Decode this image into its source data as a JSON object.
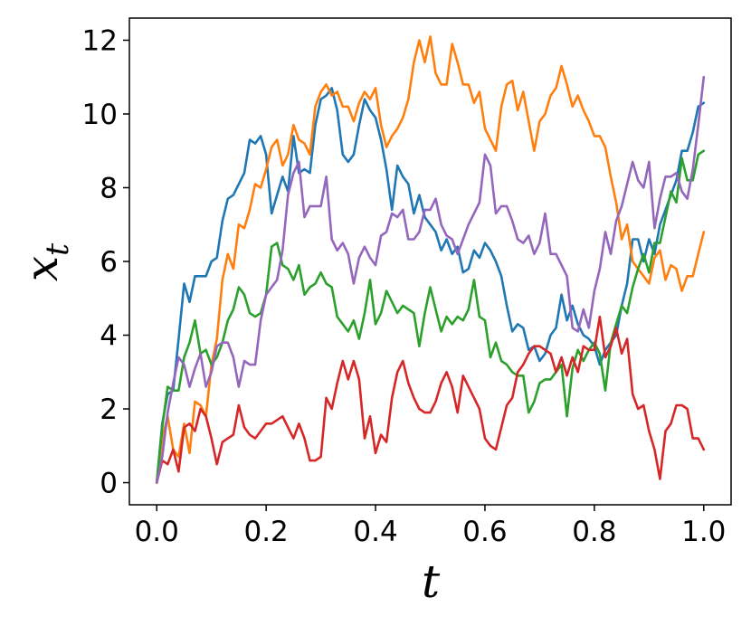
{
  "chart_data": {
    "type": "line",
    "xlabel": "t",
    "ylabel_main": "x",
    "ylabel_sub": "t",
    "xlim": [
      -0.05,
      1.05
    ],
    "ylim": [
      -0.6,
      12.6
    ],
    "xticks": [
      0.0,
      0.2,
      0.4,
      0.6,
      0.8,
      1.0
    ],
    "xtick_labels": [
      "0.0",
      "0.2",
      "0.4",
      "0.6",
      "0.8",
      "1.0"
    ],
    "yticks": [
      0,
      2,
      4,
      6,
      8,
      10,
      12
    ],
    "ytick_labels": [
      "0",
      "2",
      "4",
      "6",
      "8",
      "10",
      "12"
    ],
    "grid": false,
    "legend": "none",
    "series": [
      {
        "color": "#1f77b4",
        "x": [
          0.0,
          0.01,
          0.02,
          0.03,
          0.04,
          0.05,
          0.06,
          0.07,
          0.08,
          0.09,
          0.1,
          0.11,
          0.12,
          0.13,
          0.14,
          0.15,
          0.16,
          0.17,
          0.18,
          0.19,
          0.2,
          0.21,
          0.22,
          0.23,
          0.24,
          0.25,
          0.26,
          0.27,
          0.28,
          0.29,
          0.3,
          0.31,
          0.32,
          0.33,
          0.34,
          0.35,
          0.36,
          0.37,
          0.38,
          0.39,
          0.4,
          0.41,
          0.42,
          0.43,
          0.44,
          0.45,
          0.46,
          0.47,
          0.48,
          0.49,
          0.5,
          0.51,
          0.52,
          0.53,
          0.54,
          0.55,
          0.56,
          0.57,
          0.58,
          0.59,
          0.6,
          0.61,
          0.62,
          0.63,
          0.64,
          0.65,
          0.66,
          0.67,
          0.68,
          0.69,
          0.7,
          0.71,
          0.72,
          0.73,
          0.74,
          0.75,
          0.76,
          0.77,
          0.78,
          0.79,
          0.8,
          0.81,
          0.82,
          0.83,
          0.84,
          0.85,
          0.86,
          0.87,
          0.88,
          0.89,
          0.9,
          0.91,
          0.92,
          0.93,
          0.94,
          0.95,
          0.96,
          0.97,
          0.98,
          0.99,
          1.0
        ],
        "y": [
          0.0,
          1.6,
          2.4,
          2.5,
          3.9,
          5.4,
          4.9,
          5.6,
          5.6,
          5.6,
          6.0,
          6.1,
          7.1,
          7.7,
          7.8,
          8.1,
          8.4,
          9.3,
          9.2,
          9.4,
          8.9,
          7.3,
          7.8,
          8.3,
          7.9,
          9.4,
          8.4,
          8.5,
          8.4,
          9.7,
          10.4,
          10.5,
          10.7,
          10.1,
          8.9,
          8.7,
          8.9,
          9.7,
          10.4,
          10.1,
          9.9,
          9.3,
          8.5,
          7.4,
          8.6,
          8.3,
          8.1,
          7.3,
          7.8,
          7.2,
          7.0,
          6.8,
          6.3,
          6.6,
          6.2,
          6.4,
          5.7,
          5.8,
          6.3,
          6.1,
          6.5,
          6.3,
          6.0,
          5.6,
          4.8,
          4.1,
          4.3,
          4.2,
          3.6,
          3.7,
          3.3,
          3.5,
          4.0,
          4.2,
          5.1,
          4.4,
          4.8,
          4.3,
          4.0,
          3.9,
          3.7,
          3.2,
          3.6,
          3.8,
          4.0,
          4.8,
          5.4,
          6.6,
          6.6,
          6.0,
          6.6,
          6.2,
          7.0,
          7.4,
          7.8,
          8.2,
          9.0,
          9.0,
          9.5,
          10.2,
          10.3
        ]
      },
      {
        "color": "#ff7f0e",
        "x": [
          0.0,
          0.01,
          0.02,
          0.03,
          0.04,
          0.05,
          0.06,
          0.07,
          0.08,
          0.09,
          0.1,
          0.11,
          0.12,
          0.13,
          0.14,
          0.15,
          0.16,
          0.17,
          0.18,
          0.19,
          0.2,
          0.21,
          0.22,
          0.23,
          0.24,
          0.25,
          0.26,
          0.27,
          0.28,
          0.29,
          0.3,
          0.31,
          0.32,
          0.33,
          0.34,
          0.35,
          0.36,
          0.37,
          0.38,
          0.39,
          0.4,
          0.41,
          0.42,
          0.43,
          0.44,
          0.45,
          0.46,
          0.47,
          0.48,
          0.49,
          0.5,
          0.51,
          0.52,
          0.53,
          0.54,
          0.55,
          0.56,
          0.57,
          0.58,
          0.59,
          0.6,
          0.61,
          0.62,
          0.63,
          0.64,
          0.65,
          0.66,
          0.67,
          0.68,
          0.69,
          0.7,
          0.71,
          0.72,
          0.73,
          0.74,
          0.75,
          0.76,
          0.77,
          0.78,
          0.79,
          0.8,
          0.81,
          0.82,
          0.83,
          0.84,
          0.85,
          0.86,
          0.87,
          0.88,
          0.89,
          0.9,
          0.91,
          0.92,
          0.93,
          0.94,
          0.95,
          0.96,
          0.97,
          0.98,
          0.99,
          1.0
        ],
        "y": [
          0.0,
          1.2,
          1.8,
          0.9,
          0.7,
          1.6,
          0.8,
          2.2,
          2.1,
          1.8,
          3.2,
          3.9,
          5.5,
          6.2,
          5.8,
          7.0,
          6.9,
          7.4,
          8.1,
          8.0,
          8.5,
          9.1,
          9.3,
          8.6,
          8.9,
          9.7,
          9.3,
          9.2,
          8.9,
          10.2,
          10.6,
          10.8,
          10.5,
          10.6,
          10.2,
          10.2,
          9.8,
          10.3,
          10.6,
          10.4,
          10.7,
          9.7,
          9.1,
          9.4,
          9.6,
          9.9,
          10.4,
          11.4,
          12.0,
          11.4,
          12.1,
          11.1,
          10.8,
          10.8,
          11.9,
          11.4,
          10.8,
          10.8,
          10.3,
          10.6,
          9.6,
          9.3,
          9.0,
          10.2,
          10.8,
          10.9,
          10.1,
          10.6,
          9.8,
          9.0,
          9.8,
          10.0,
          10.5,
          10.7,
          11.3,
          10.8,
          10.2,
          10.5,
          10.1,
          9.8,
          9.4,
          9.4,
          9.1,
          8.3,
          7.6,
          6.6,
          7.0,
          6.0,
          5.8,
          5.6,
          5.4,
          6.1,
          6.3,
          5.5,
          5.9,
          5.8,
          5.2,
          5.6,
          5.6,
          6.2,
          6.8
        ]
      },
      {
        "color": "#2ca02c",
        "x": [
          0.0,
          0.01,
          0.02,
          0.03,
          0.04,
          0.05,
          0.06,
          0.07,
          0.08,
          0.09,
          0.1,
          0.11,
          0.12,
          0.13,
          0.14,
          0.15,
          0.16,
          0.17,
          0.18,
          0.19,
          0.2,
          0.21,
          0.22,
          0.23,
          0.24,
          0.25,
          0.26,
          0.27,
          0.28,
          0.29,
          0.3,
          0.31,
          0.32,
          0.33,
          0.34,
          0.35,
          0.36,
          0.37,
          0.38,
          0.39,
          0.4,
          0.41,
          0.42,
          0.43,
          0.44,
          0.45,
          0.46,
          0.47,
          0.48,
          0.49,
          0.5,
          0.51,
          0.52,
          0.53,
          0.54,
          0.55,
          0.56,
          0.57,
          0.58,
          0.59,
          0.6,
          0.61,
          0.62,
          0.63,
          0.64,
          0.65,
          0.66,
          0.67,
          0.68,
          0.69,
          0.7,
          0.71,
          0.72,
          0.73,
          0.74,
          0.75,
          0.76,
          0.77,
          0.78,
          0.79,
          0.8,
          0.81,
          0.82,
          0.83,
          0.84,
          0.85,
          0.86,
          0.87,
          0.88,
          0.89,
          0.9,
          0.91,
          0.92,
          0.93,
          0.94,
          0.95,
          0.96,
          0.97,
          0.98,
          0.99,
          1.0
        ],
        "y": [
          0.0,
          1.5,
          2.6,
          2.5,
          2.5,
          3.4,
          3.8,
          4.4,
          3.5,
          3.6,
          3.2,
          3.4,
          3.8,
          4.4,
          4.7,
          5.3,
          5.1,
          4.6,
          4.5,
          4.6,
          5.1,
          6.4,
          6.5,
          5.9,
          5.8,
          5.5,
          5.9,
          5.1,
          5.3,
          5.4,
          5.7,
          5.4,
          5.3,
          4.5,
          4.3,
          4.1,
          4.4,
          3.9,
          4.6,
          5.5,
          4.3,
          4.6,
          5.2,
          4.9,
          4.6,
          4.8,
          4.7,
          4.6,
          3.7,
          4.6,
          5.3,
          4.7,
          4.1,
          4.5,
          4.3,
          4.5,
          4.4,
          4.7,
          5.5,
          4.5,
          4.4,
          3.4,
          3.8,
          3.3,
          3.2,
          3.0,
          2.9,
          2.9,
          1.9,
          2.2,
          2.7,
          2.8,
          2.8,
          3.0,
          3.2,
          1.8,
          3.1,
          3.6,
          3.3,
          3.6,
          3.8,
          3.5,
          2.5,
          3.8,
          4.3,
          4.8,
          4.6,
          5.3,
          5.8,
          6.2,
          5.7,
          6.5,
          6.5,
          7.2,
          7.9,
          7.6,
          8.8,
          8.2,
          8.2,
          8.9,
          9.0
        ]
      },
      {
        "color": "#d62728",
        "x": [
          0.0,
          0.01,
          0.02,
          0.03,
          0.04,
          0.05,
          0.06,
          0.07,
          0.08,
          0.09,
          0.1,
          0.11,
          0.12,
          0.13,
          0.14,
          0.15,
          0.16,
          0.17,
          0.18,
          0.19,
          0.2,
          0.21,
          0.22,
          0.23,
          0.24,
          0.25,
          0.26,
          0.27,
          0.28,
          0.29,
          0.3,
          0.31,
          0.32,
          0.33,
          0.34,
          0.35,
          0.36,
          0.37,
          0.38,
          0.39,
          0.4,
          0.41,
          0.42,
          0.43,
          0.44,
          0.45,
          0.46,
          0.47,
          0.48,
          0.49,
          0.5,
          0.51,
          0.52,
          0.53,
          0.54,
          0.55,
          0.56,
          0.57,
          0.58,
          0.59,
          0.6,
          0.61,
          0.62,
          0.63,
          0.64,
          0.65,
          0.66,
          0.67,
          0.68,
          0.69,
          0.7,
          0.71,
          0.72,
          0.73,
          0.74,
          0.75,
          0.76,
          0.77,
          0.78,
          0.79,
          0.8,
          0.81,
          0.82,
          0.83,
          0.84,
          0.85,
          0.86,
          0.87,
          0.88,
          0.89,
          0.9,
          0.91,
          0.92,
          0.93,
          0.94,
          0.95,
          0.96,
          0.97,
          0.98,
          0.99,
          1.0
        ],
        "y": [
          0.0,
          0.6,
          0.5,
          0.9,
          0.3,
          1.5,
          1.6,
          1.4,
          2.0,
          1.8,
          1.2,
          0.5,
          1.1,
          1.2,
          1.3,
          2.1,
          1.5,
          1.3,
          1.2,
          1.4,
          1.6,
          1.6,
          1.7,
          1.8,
          1.5,
          1.2,
          1.6,
          1.2,
          0.6,
          0.6,
          0.7,
          2.3,
          2.0,
          2.7,
          3.3,
          2.8,
          3.3,
          2.8,
          1.2,
          1.8,
          0.8,
          1.3,
          1.1,
          2.3,
          3.0,
          3.3,
          2.7,
          2.3,
          2.0,
          1.9,
          1.9,
          2.2,
          2.7,
          3.0,
          2.6,
          1.9,
          2.9,
          2.6,
          2.3,
          2.0,
          1.2,
          1.0,
          0.9,
          1.5,
          2.1,
          2.3,
          3.0,
          3.2,
          3.5,
          3.7,
          3.7,
          3.6,
          3.5,
          3.0,
          3.4,
          2.9,
          3.4,
          3.0,
          3.7,
          3.6,
          3.6,
          4.5,
          3.4,
          3.7,
          4.2,
          3.5,
          3.9,
          2.4,
          2.0,
          2.1,
          1.4,
          0.9,
          0.1,
          1.4,
          1.6,
          2.1,
          2.1,
          2.0,
          1.2,
          1.2,
          0.9
        ]
      },
      {
        "color": "#9467bd",
        "x": [
          0.0,
          0.01,
          0.02,
          0.03,
          0.04,
          0.05,
          0.06,
          0.07,
          0.08,
          0.09,
          0.1,
          0.11,
          0.12,
          0.13,
          0.14,
          0.15,
          0.16,
          0.17,
          0.18,
          0.19,
          0.2,
          0.21,
          0.22,
          0.23,
          0.24,
          0.25,
          0.26,
          0.27,
          0.28,
          0.29,
          0.3,
          0.31,
          0.32,
          0.33,
          0.34,
          0.35,
          0.36,
          0.37,
          0.38,
          0.39,
          0.4,
          0.41,
          0.42,
          0.43,
          0.44,
          0.45,
          0.46,
          0.47,
          0.48,
          0.49,
          0.5,
          0.51,
          0.52,
          0.53,
          0.54,
          0.55,
          0.56,
          0.57,
          0.58,
          0.59,
          0.6,
          0.61,
          0.62,
          0.63,
          0.64,
          0.65,
          0.66,
          0.67,
          0.68,
          0.69,
          0.7,
          0.71,
          0.72,
          0.73,
          0.74,
          0.75,
          0.76,
          0.77,
          0.78,
          0.79,
          0.8,
          0.81,
          0.82,
          0.83,
          0.84,
          0.85,
          0.86,
          0.87,
          0.88,
          0.89,
          0.9,
          0.91,
          0.92,
          0.93,
          0.94,
          0.95,
          0.96,
          0.97,
          0.98,
          0.99,
          1.0
        ],
        "y": [
          0.0,
          0.7,
          1.9,
          2.7,
          3.4,
          3.2,
          2.6,
          3.1,
          3.5,
          2.6,
          3.0,
          3.7,
          3.8,
          3.8,
          3.4,
          2.6,
          3.3,
          3.2,
          3.2,
          4.4,
          5.1,
          5.3,
          5.5,
          6.3,
          7.8,
          8.4,
          8.7,
          7.2,
          7.5,
          7.5,
          7.5,
          8.3,
          6.6,
          6.3,
          6.5,
          6.2,
          5.4,
          6.1,
          6.4,
          6.1,
          5.9,
          6.7,
          6.8,
          7.3,
          7.2,
          7.4,
          6.6,
          6.6,
          6.8,
          7.4,
          7.4,
          7.7,
          7.0,
          6.7,
          6.6,
          6.2,
          6.6,
          7.0,
          7.3,
          7.6,
          8.9,
          8.6,
          7.3,
          7.5,
          7.5,
          7.1,
          6.6,
          6.5,
          6.7,
          6.2,
          6.5,
          7.3,
          6.2,
          6.2,
          5.9,
          5.6,
          4.2,
          4.1,
          4.7,
          4.2,
          5.2,
          5.8,
          6.8,
          6.2,
          7.1,
          7.5,
          8.1,
          8.7,
          8.2,
          8.0,
          8.7,
          6.9,
          7.7,
          8.3,
          8.3,
          8.4,
          7.9,
          7.7,
          8.5,
          9.7,
          11.0
        ]
      }
    ]
  }
}
